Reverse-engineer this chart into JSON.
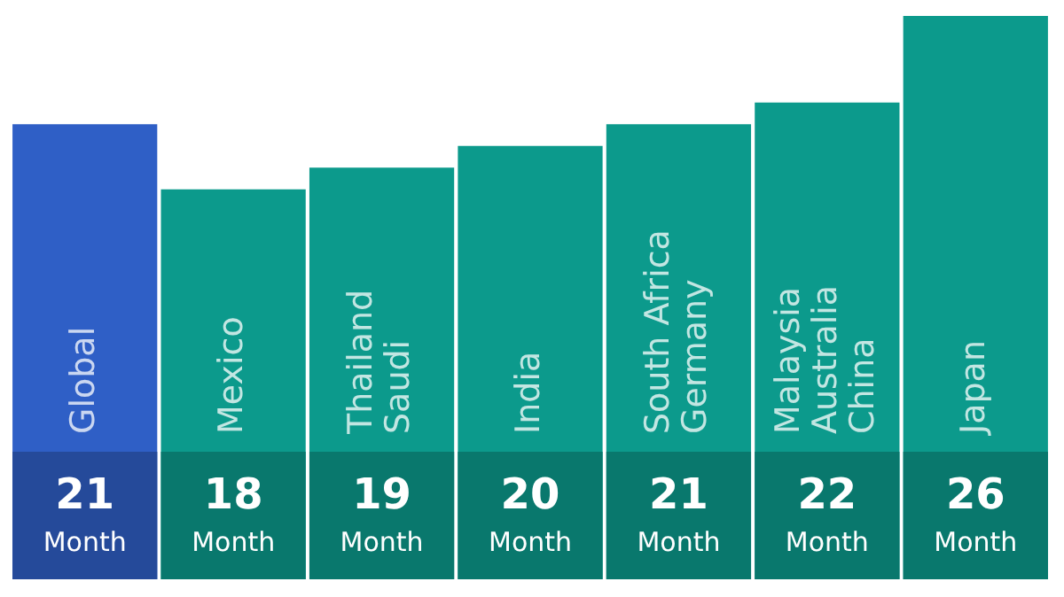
{
  "chart_data": {
    "type": "bar",
    "categories": [
      "Global",
      "Mexico",
      "Thailand\nSaudi",
      "India",
      "South Africa\nGermany",
      "Malaysia\nAustralia\nChina",
      "Japan"
    ],
    "values": [
      21,
      18,
      19,
      20,
      21,
      22,
      26
    ],
    "colors": [
      "#2f5fc6",
      "#0c9a8c",
      "#0c9a8c",
      "#0c9a8c",
      "#0c9a8c",
      "#0c9a8c",
      "#0c9a8c"
    ],
    "value_labels": [
      "21 Month",
      "18 Month",
      "19 Month",
      "20 Month",
      "21 Month",
      "22 Month",
      "26 Month"
    ],
    "legend": false,
    "tick_labels": false
  }
}
